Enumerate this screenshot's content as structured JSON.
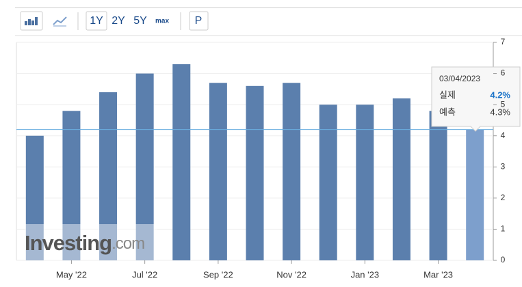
{
  "toolbar": {
    "ranges": [
      "1Y",
      "2Y",
      "5Y",
      "max"
    ],
    "period": "P"
  },
  "watermark": {
    "brand": "Investing",
    "suffix": ".com"
  },
  "chart_data": {
    "type": "bar",
    "categories": [
      null,
      "May '22",
      null,
      "Jul '22",
      null,
      "Sep '22",
      null,
      "Nov '22",
      null,
      "Jan '23",
      null,
      "Mar '23",
      null
    ],
    "values": [
      4.0,
      4.8,
      5.4,
      6.0,
      6.3,
      5.7,
      5.6,
      5.7,
      5.0,
      5.0,
      5.2,
      4.8,
      4.2
    ],
    "color": "#5b7fad",
    "highlight_color": "#7d9fcc",
    "ylim": [
      0,
      7
    ],
    "yticks": [
      0,
      1,
      2,
      3,
      4,
      5,
      6,
      7
    ],
    "grid": true,
    "tooltip": {
      "date": "03/04/2023",
      "actual_label": "실제",
      "actual": "4.2%",
      "forecast_label": "예측",
      "forecast": "4.3%"
    }
  }
}
